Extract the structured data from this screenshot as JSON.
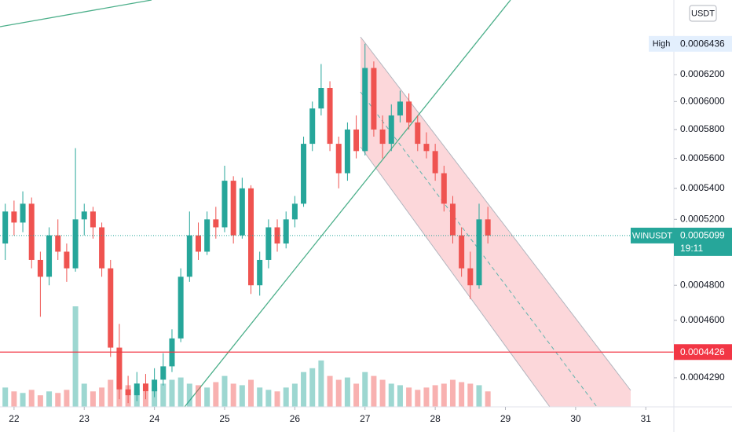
{
  "chart_data": {
    "type": "candlestick",
    "currency": "USDT",
    "x": [
      21.875,
      22,
      22.125,
      22.25,
      22.375,
      22.5,
      22.625,
      22.75,
      22.875,
      23,
      23.125,
      23.25,
      23.375,
      23.5,
      23.625,
      23.75,
      23.875,
      24,
      24.125,
      24.25,
      24.375,
      24.5,
      24.625,
      24.75,
      24.875,
      25,
      25.125,
      25.25,
      25.375,
      25.5,
      25.625,
      25.75,
      25.875,
      26,
      26.125,
      26.25,
      26.375,
      26.5,
      26.625,
      26.75,
      26.875,
      27,
      27.125,
      27.25,
      27.375,
      27.5,
      27.625,
      27.75,
      27.875,
      28,
      28.125,
      28.25,
      28.375,
      28.5,
      28.625,
      28.75
    ],
    "open": [
      0.000505,
      0.000525,
      0.000518,
      0.00053,
      0.000495,
      0.000485,
      0.00051,
      0.0005,
      0.00049,
      0.00052,
      0.000525,
      0.000515,
      0.00049,
      0.000445,
      0.000423,
      0.00042,
      0.000426,
      0.000422,
      0.000428,
      0.000435,
      0.00045,
      0.000485,
      0.00051,
      0.0005,
      0.00052,
      0.000515,
      0.000545,
      0.00051,
      0.00054,
      0.00048,
      0.000495,
      0.000515,
      0.000505,
      0.00052,
      0.00053,
      0.00057,
      0.000595,
      0.00061,
      0.00057,
      0.00055,
      0.00058,
      0.000565,
      0.000625,
      0.00058,
      0.00057,
      0.00059,
      0.0006,
      0.000585,
      0.00057,
      0.000565,
      0.00055,
      0.00053,
      0.00051,
      0.00049,
      0.00048,
      0.00052
    ],
    "high": [
      0.00053,
      0.000532,
      0.000538,
      0.000534,
      0.0005,
      0.000515,
      0.00052,
      0.000505,
      0.000567,
      0.00053,
      0.000528,
      0.000518,
      0.000495,
      0.000458,
      0.00043,
      0.000432,
      0.000431,
      0.000434,
      0.000442,
      0.000455,
      0.00049,
      0.000525,
      0.000518,
      0.000525,
      0.000528,
      0.000555,
      0.000548,
      0.000547,
      0.000542,
      0.0005,
      0.00052,
      0.00052,
      0.000525,
      0.000535,
      0.000575,
      0.0006,
      0.000628,
      0.000615,
      0.000575,
      0.000585,
      0.00059,
      0.0006436,
      0.00063,
      0.00059,
      0.000598,
      0.000608,
      0.000606,
      0.00059,
      0.000578,
      0.00057,
      0.000555,
      0.000535,
      0.000515,
      0.0005,
      0.00053,
      0.000528
    ],
    "low": [
      0.000495,
      0.00051,
      0.000512,
      0.00049,
      0.000462,
      0.00048,
      0.000495,
      0.000482,
      0.000488,
      0.00051,
      0.000508,
      0.000485,
      0.00044,
      0.000418,
      0.000416,
      0.000417,
      0.000418,
      0.000419,
      0.000425,
      0.000432,
      0.000448,
      0.000482,
      0.000495,
      0.000498,
      0.000508,
      0.000512,
      0.000505,
      0.000508,
      0.000475,
      0.000474,
      0.00049,
      0.0005,
      0.000502,
      0.000515,
      0.000528,
      0.000565,
      0.00059,
      0.000565,
      0.00054,
      0.000545,
      0.00056,
      0.000562,
      0.000575,
      0.00056,
      0.000565,
      0.000585,
      0.00058,
      0.000565,
      0.00056,
      0.000545,
      0.000525,
      0.000505,
      0.000485,
      0.000472,
      0.000478,
      0.000505
    ],
    "close": [
      0.000525,
      0.000518,
      0.00053,
      0.000495,
      0.000485,
      0.00051,
      0.0005,
      0.00049,
      0.00052,
      0.000525,
      0.000515,
      0.00049,
      0.000445,
      0.000423,
      0.00042,
      0.000426,
      0.000422,
      0.000428,
      0.000435,
      0.00045,
      0.000485,
      0.00051,
      0.0005,
      0.00052,
      0.000515,
      0.000545,
      0.00051,
      0.00054,
      0.00048,
      0.000495,
      0.000515,
      0.000505,
      0.00052,
      0.00053,
      0.00057,
      0.000595,
      0.00061,
      0.00057,
      0.00055,
      0.00058,
      0.000565,
      0.000625,
      0.00058,
      0.00057,
      0.00059,
      0.0006,
      0.000585,
      0.00057,
      0.000565,
      0.00055,
      0.00053,
      0.00051,
      0.00049,
      0.00048,
      0.00052,
      0.0005099
    ],
    "volume": [
      25,
      20,
      18,
      22,
      15,
      20,
      18,
      22,
      130,
      30,
      20,
      25,
      35,
      40,
      28,
      22,
      20,
      25,
      30,
      35,
      38,
      30,
      28,
      25,
      32,
      40,
      30,
      28,
      35,
      25,
      22,
      20,
      25,
      30,
      45,
      50,
      60,
      40,
      35,
      38,
      30,
      45,
      40,
      35,
      30,
      28,
      25,
      22,
      25,
      28,
      30,
      35,
      32,
      30,
      28,
      20
    ],
    "up_color": "#26a69a",
    "down_color": "#ef5350",
    "log_scale": true,
    "xlim": [
      21.8,
      31.4
    ],
    "xticks": [
      22,
      23,
      24,
      25,
      26,
      27,
      28,
      29,
      30,
      31
    ],
    "ylim": [
      0.0004141,
      0.0006788
    ],
    "yticks": [
      {
        "value": 0.00062,
        "label": "0.0006200"
      },
      {
        "value": 0.0006,
        "label": "0.0006000"
      },
      {
        "value": 0.00058,
        "label": "0.0005800"
      },
      {
        "value": 0.00056,
        "label": "0.0005600"
      },
      {
        "value": 0.00054,
        "label": "0.0005400"
      },
      {
        "value": 0.00052,
        "label": "0.0005200"
      },
      {
        "value": 0.00048,
        "label": "0.0004800"
      },
      {
        "value": 0.00046,
        "label": "0.0004600"
      },
      {
        "value": 0.000429,
        "label": "0.0004290"
      }
    ],
    "price_line": {
      "value": 0.0004426,
      "color": "#f23645"
    },
    "last_price": {
      "symbol": "WINUSDT",
      "value": 0.0005099,
      "countdown": "19:11"
    },
    "high_marker": {
      "label": "High",
      "value": 0.0006436
    }
  }
}
